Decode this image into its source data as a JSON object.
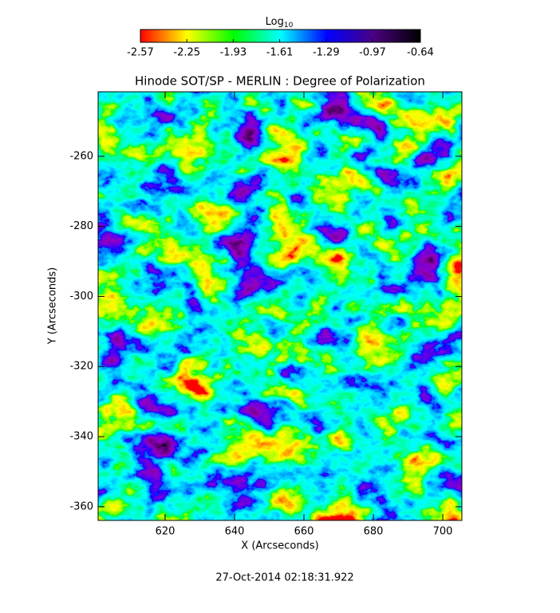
{
  "chart_data": {
    "type": "image",
    "title": "Hinode SOT/SP - MERLIN : Degree of Polarization",
    "x_label": "X (Arcseconds)",
    "y_label": "Y (Arcseconds)",
    "footer": "27-Oct-2014 02:18:31.922",
    "xlim": [
      600.7,
      705.5
    ],
    "xticks": [
      620,
      640,
      660,
      680,
      700
    ],
    "ylim": [
      -363.9,
      -241.6
    ],
    "yticks": [
      -260,
      -280,
      -300,
      -320,
      -340,
      -360
    ],
    "colorbar_label": "Log",
    "colorbar_label_sub": "10",
    "clim": [
      -2.57,
      -0.64
    ],
    "cticks": [
      -2.57,
      -2.25,
      -1.93,
      -1.61,
      -1.29,
      -0.97,
      -0.64
    ],
    "colormap": [
      "#ff0000",
      "#ffff00",
      "#00ff00",
      "#00ffff",
      "#0000ff",
      "#4b0082",
      "#000000"
    ]
  }
}
